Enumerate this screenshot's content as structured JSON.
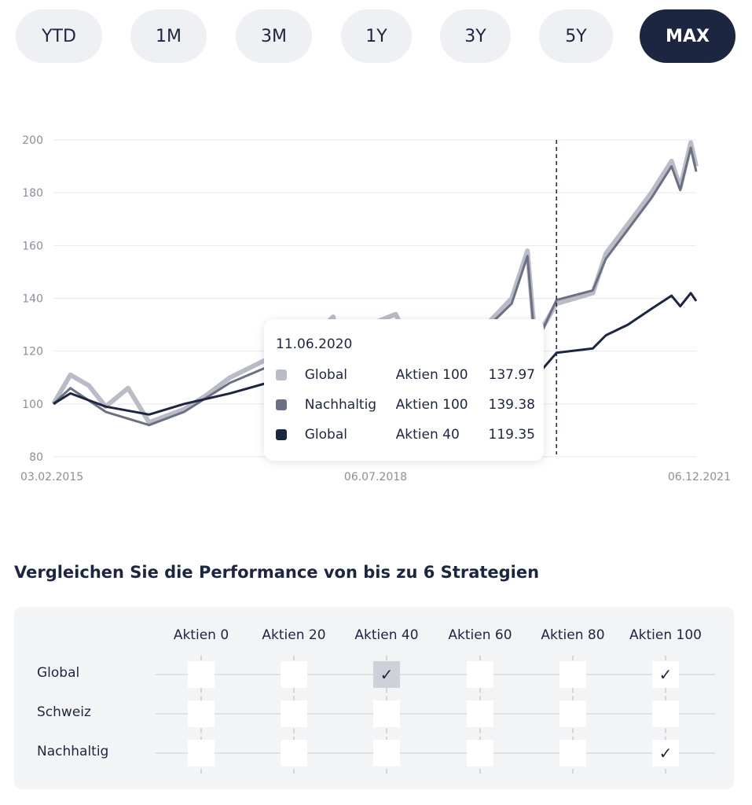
{
  "ranges": [
    {
      "label": "YTD"
    },
    {
      "label": "1M"
    },
    {
      "label": "3M"
    },
    {
      "label": "1Y"
    },
    {
      "label": "3Y"
    },
    {
      "label": "5Y"
    },
    {
      "label": "MAX",
      "active": true
    }
  ],
  "chart_data": {
    "type": "line",
    "ylim": [
      80,
      200
    ],
    "yticks": [
      "80",
      "100",
      "120",
      "140",
      "160",
      "180",
      "200"
    ],
    "xticks": [
      "03.02.2015",
      "06.07.2018",
      "06.12.2021"
    ],
    "xlim": [
      "2015-02-03",
      "2021-12-06"
    ],
    "grid": true,
    "cursor_date": "2020-06-11",
    "series": [
      {
        "color": "#b9bcc7",
        "points": [
          [
            "2015-02-03",
            100
          ],
          [
            "2015-04-10",
            111
          ],
          [
            "2015-06-20",
            107
          ],
          [
            "2015-08-25",
            99
          ],
          [
            "2015-11-20",
            106
          ],
          [
            "2016-02-10",
            93
          ],
          [
            "2016-06-25",
            98
          ],
          [
            "2016-09-15",
            103
          ],
          [
            "2016-12-20",
            110
          ],
          [
            "2017-05-15",
            117
          ],
          [
            "2017-10-01",
            122
          ],
          [
            "2018-01-25",
            133
          ],
          [
            "2018-02-10",
            125
          ],
          [
            "2018-06-15",
            130
          ],
          [
            "2018-09-25",
            134
          ],
          [
            "2018-12-24",
            117
          ],
          [
            "2019-04-15",
            130
          ],
          [
            "2019-08-15",
            127
          ],
          [
            "2019-12-20",
            140
          ],
          [
            "2020-02-19",
            158
          ],
          [
            "2020-03-20",
            124
          ],
          [
            "2020-06-11",
            137.97
          ],
          [
            "2020-10-30",
            142
          ],
          [
            "2020-12-20",
            157
          ],
          [
            "2021-03-15",
            168
          ],
          [
            "2021-06-15",
            180
          ],
          [
            "2021-09-01",
            192
          ],
          [
            "2021-10-05",
            182
          ],
          [
            "2021-11-15",
            199
          ],
          [
            "2021-12-06",
            190
          ]
        ]
      },
      {
        "color": "#6b7082",
        "points": [
          [
            "2015-02-03",
            100
          ],
          [
            "2015-04-10",
            106
          ],
          [
            "2015-08-25",
            97
          ],
          [
            "2016-02-10",
            92
          ],
          [
            "2016-06-25",
            97
          ],
          [
            "2016-12-20",
            108
          ],
          [
            "2017-05-15",
            114
          ],
          [
            "2017-10-01",
            120
          ],
          [
            "2018-01-25",
            130
          ],
          [
            "2018-02-10",
            123
          ],
          [
            "2018-09-25",
            131
          ],
          [
            "2018-12-24",
            116
          ],
          [
            "2019-04-15",
            129
          ],
          [
            "2019-08-15",
            126
          ],
          [
            "2019-12-20",
            138
          ],
          [
            "2020-02-19",
            156
          ],
          [
            "2020-03-20",
            122
          ],
          [
            "2020-06-11",
            139.38
          ],
          [
            "2020-10-30",
            143
          ],
          [
            "2020-12-20",
            155
          ],
          [
            "2021-03-15",
            166
          ],
          [
            "2021-06-15",
            178
          ],
          [
            "2021-09-01",
            190
          ],
          [
            "2021-10-05",
            181
          ],
          [
            "2021-11-15",
            197
          ],
          [
            "2021-12-06",
            188
          ]
        ]
      },
      {
        "color": "#1c2640",
        "points": [
          [
            "2015-02-03",
            100
          ],
          [
            "2015-04-10",
            104
          ],
          [
            "2015-08-25",
            99
          ],
          [
            "2016-02-10",
            96
          ],
          [
            "2016-06-25",
            100
          ],
          [
            "2016-12-20",
            104
          ],
          [
            "2017-05-15",
            108
          ],
          [
            "2017-10-01",
            111
          ],
          [
            "2018-01-25",
            114
          ],
          [
            "2018-06-15",
            113
          ],
          [
            "2018-12-24",
            110
          ],
          [
            "2019-06-15",
            117
          ],
          [
            "2019-12-20",
            123
          ],
          [
            "2020-02-19",
            128
          ],
          [
            "2020-03-20",
            110
          ],
          [
            "2020-06-11",
            119.35
          ],
          [
            "2020-10-30",
            121
          ],
          [
            "2020-12-20",
            126
          ],
          [
            "2021-03-15",
            130
          ],
          [
            "2021-06-15",
            136
          ],
          [
            "2021-09-01",
            141
          ],
          [
            "2021-10-05",
            137
          ],
          [
            "2021-11-15",
            142
          ],
          [
            "2021-12-06",
            139
          ]
        ]
      }
    ]
  },
  "tooltip": {
    "date": "11.06.2020",
    "rows": [
      {
        "name": "Global",
        "strategy": "Aktien 100",
        "value": "137.97",
        "color": "#b9bcc7"
      },
      {
        "name": "Nachhaltig",
        "strategy": "Aktien 100",
        "value": "139.38",
        "color": "#6b7082"
      },
      {
        "name": "Global",
        "strategy": "Aktien 40",
        "value": "119.35",
        "color": "#1c2640"
      }
    ]
  },
  "compare": {
    "title": "Vergleichen Sie die Performance von bis zu 6 Strategien",
    "columns": [
      "Aktien 0",
      "Aktien 20",
      "Aktien 40",
      "Aktien 60",
      "Aktien 80",
      "Aktien 100"
    ],
    "rows": [
      {
        "label": "Global",
        "checked": [
          false,
          false,
          true,
          false,
          false,
          true
        ]
      },
      {
        "label": "Schweiz",
        "checked": [
          false,
          false,
          false,
          false,
          false,
          false
        ]
      },
      {
        "label": "Nachhaltig",
        "checked": [
          false,
          false,
          false,
          false,
          false,
          true
        ]
      }
    ],
    "check_glyph": "✓"
  }
}
